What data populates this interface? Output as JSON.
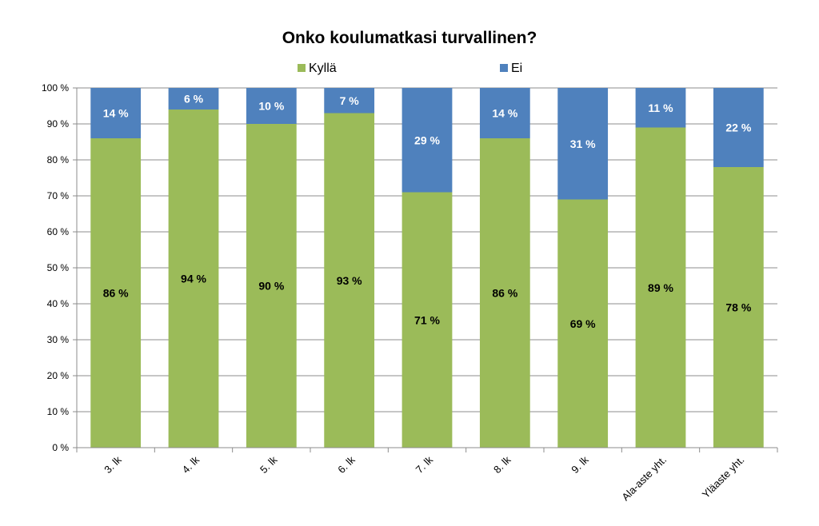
{
  "chart_data": {
    "type": "bar",
    "stacked": true,
    "title": "Onko koulumatkasi turvallinen?",
    "categories": [
      "3. lk",
      "4. lk",
      "5. lk",
      "6. lk",
      "7. lk",
      "8. lk",
      "9. lk",
      "Ala-aste yht.",
      "Yläaste yht."
    ],
    "series": [
      {
        "name": "Kyllä",
        "color": "#9bbb59",
        "values": [
          86,
          94,
          90,
          93,
          71,
          86,
          69,
          89,
          78
        ],
        "labels": [
          "86 %",
          "94 %",
          "90 %",
          "93 %",
          "71 %",
          "86 %",
          "69 %",
          "89 %",
          "78 %"
        ]
      },
      {
        "name": "Ei",
        "color": "#4f81bd",
        "values": [
          14,
          6,
          10,
          7,
          29,
          14,
          31,
          11,
          22
        ],
        "labels": [
          "14 %",
          "6 %",
          "10 %",
          "7 %",
          "29 %",
          "14 %",
          "31 %",
          "11 %",
          "22 %"
        ]
      }
    ],
    "y_ticks": [
      "0 %",
      "10 %",
      "20 %",
      "30 %",
      "40 %",
      "50 %",
      "60 %",
      "70 %",
      "80 %",
      "90 %",
      "100 %"
    ],
    "ylim": [
      0,
      100
    ],
    "grid": true,
    "legend_position": "top"
  }
}
